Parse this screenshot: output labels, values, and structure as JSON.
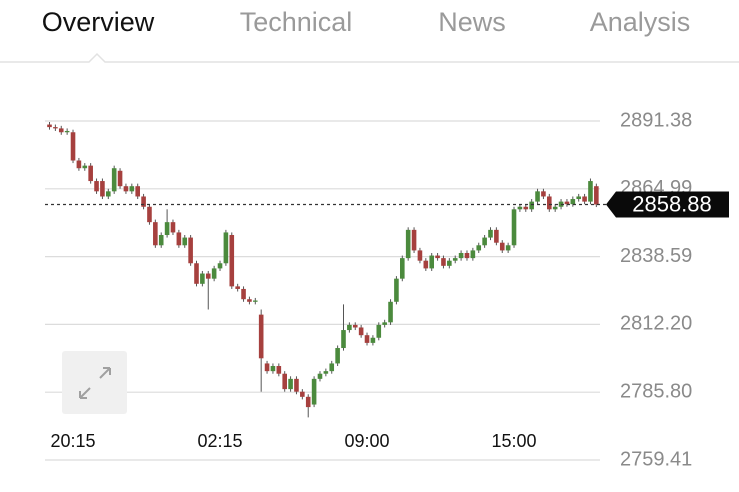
{
  "tabs": [
    "Overview",
    "Technical",
    "News",
    "Analysis"
  ],
  "active_tab": 0,
  "chart_data": {
    "type": "candlestick",
    "categories": [
      null,
      null,
      null,
      null,
      "20:15",
      null,
      null,
      null,
      null,
      null,
      null,
      null,
      null,
      null,
      null,
      null,
      null,
      null,
      null,
      null,
      null,
      null,
      null,
      null,
      null,
      null,
      null,
      null,
      null,
      "02:15",
      null,
      null,
      null,
      null,
      null,
      null,
      null,
      null,
      null,
      null,
      null,
      null,
      null,
      null,
      null,
      null,
      null,
      null,
      null,
      null,
      null,
      null,
      null,
      null,
      "09:00",
      null,
      null,
      null,
      null,
      null,
      null,
      null,
      null,
      null,
      null,
      null,
      null,
      null,
      null,
      null,
      null,
      null,
      null,
      null,
      null,
      null,
      null,
      null,
      null,
      "15:00",
      null,
      null,
      null,
      null,
      null,
      null,
      null,
      null,
      null,
      null,
      null,
      null,
      null,
      null
    ],
    "open": [
      2890,
      2889,
      2888.5,
      2887,
      2887,
      2876,
      2873,
      2874,
      2868,
      2868,
      2862,
      2864,
      2872,
      2866,
      2864,
      2866,
      2862,
      2858,
      2852,
      2843,
      2847,
      2852,
      2848,
      2843,
      2846,
      2836,
      2828,
      2832,
      2830,
      2834,
      2836,
      2847,
      2827,
      2826,
      2822,
      2821,
      2816,
      2797,
      2794,
      2796,
      2793,
      2787,
      2791,
      2786,
      2784,
      2781,
      2791,
      2793,
      2794,
      2797,
      2803,
      2810,
      2812,
      2811,
      2808,
      2805,
      2807,
      2812,
      2813,
      2821,
      2830,
      2838,
      2849,
      2841,
      2837,
      2834,
      2839,
      2838,
      2835,
      2837,
      2838,
      2840,
      2838,
      2841,
      2843,
      2846,
      2849,
      2844,
      2841,
      2843,
      2857,
      2858,
      2857,
      2860,
      2864,
      2862,
      2857,
      2858,
      2860,
      2859,
      2861,
      2862,
      2860,
      2866
    ],
    "high": [
      2891,
      2890,
      2889.5,
      2888.5,
      2888,
      2877,
      2875,
      2875,
      2869,
      2869,
      2865,
      2874,
      2873,
      2867,
      2867,
      2867,
      2863,
      2859,
      2853,
      2848,
      2857,
      2853,
      2849,
      2847,
      2847,
      2837,
      2833,
      2833,
      2835,
      2837,
      2849,
      2848,
      2828,
      2827,
      2823,
      2822.5,
      2818,
      2798,
      2797,
      2797,
      2794,
      2792,
      2792,
      2787,
      2785,
      2792,
      2794,
      2795,
      2798,
      2804,
      2820,
      2813,
      2813,
      2812,
      2809,
      2808,
      2813,
      2814,
      2822,
      2831,
      2839,
      2850,
      2850,
      2842,
      2838,
      2840,
      2840,
      2839,
      2838,
      2839,
      2841,
      2841,
      2842,
      2844,
      2847,
      2850,
      2850,
      2845,
      2844,
      2858,
      2859,
      2859,
      2861,
      2865,
      2865,
      2863,
      2859,
      2861,
      2861,
      2862,
      2863,
      2863,
      2869,
      2867
    ],
    "low": [
      2888,
      2887.5,
      2886,
      2886,
      2875,
      2872,
      2872,
      2867,
      2863,
      2861,
      2861,
      2863,
      2865,
      2863,
      2863,
      2861,
      2857,
      2851,
      2842,
      2842,
      2846,
      2847,
      2842,
      2842,
      2835,
      2827,
      2827,
      2818,
      2829,
      2833,
      2835,
      2826,
      2825,
      2821,
      2820,
      2820,
      2786,
      2793,
      2793,
      2792,
      2786,
      2786,
      2785,
      2783,
      2776,
      2780,
      2790,
      2792,
      2793,
      2796,
      2802,
      2809,
      2810,
      2807,
      2804,
      2804,
      2806,
      2811,
      2812,
      2820,
      2829,
      2837,
      2840,
      2836,
      2833,
      2833,
      2837,
      2834,
      2834,
      2836,
      2837,
      2837,
      2837,
      2840,
      2842,
      2845,
      2843,
      2840,
      2840,
      2842,
      2856,
      2856,
      2856,
      2859,
      2861,
      2856,
      2856,
      2857,
      2858,
      2858,
      2860,
      2859,
      2859,
      2857.88
    ],
    "close": [
      2889,
      2888.5,
      2887,
      2887.5,
      2876,
      2873,
      2874,
      2868,
      2864,
      2862,
      2864,
      2873,
      2866,
      2864,
      2866,
      2862,
      2858,
      2852,
      2843,
      2847,
      2852,
      2848,
      2843,
      2846,
      2836,
      2828,
      2832,
      2830,
      2834,
      2836,
      2848,
      2827,
      2826,
      2822,
      2821,
      2821.5,
      2799,
      2794,
      2796,
      2793,
      2787,
      2791,
      2786,
      2784,
      2780,
      2791,
      2793,
      2794,
      2797,
      2803,
      2810,
      2812,
      2811,
      2808,
      2805,
      2807,
      2812,
      2813,
      2821,
      2830,
      2838,
      2849,
      2841,
      2837,
      2834,
      2839,
      2838,
      2835,
      2837,
      2838,
      2840,
      2838,
      2841,
      2843,
      2846,
      2849,
      2844,
      2841,
      2843,
      2857,
      2858,
      2857,
      2860,
      2864,
      2862,
      2857,
      2858,
      2860,
      2859,
      2861,
      2862,
      2860,
      2868,
      2858.88
    ],
    "up_color": "#4b8a3d",
    "down_color": "#a6403e",
    "ylim": [
      2759.41,
      2891.38
    ],
    "yticks": [
      2759.41,
      {
        "value": 2785.8,
        "label": "2785.80"
      },
      {
        "value": 2812.2,
        "label": "2812.20"
      },
      2838.59,
      2864.99,
      2891.38
    ],
    "grid": true,
    "last_price": 2858.88
  }
}
